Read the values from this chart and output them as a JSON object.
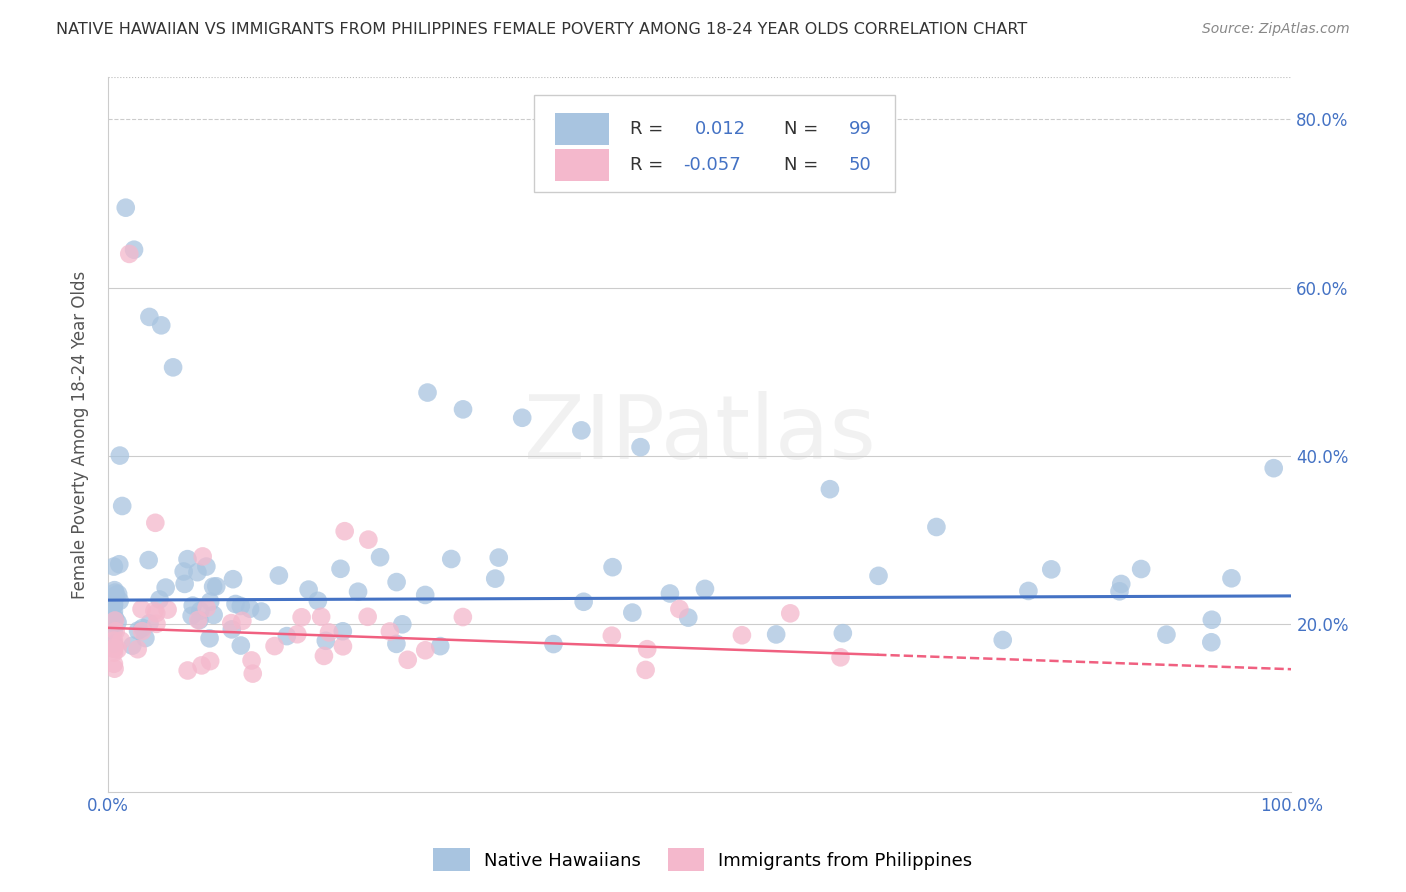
{
  "title": "NATIVE HAWAIIAN VS IMMIGRANTS FROM PHILIPPINES FEMALE POVERTY AMONG 18-24 YEAR OLDS CORRELATION CHART",
  "source": "Source: ZipAtlas.com",
  "ylabel": "Female Poverty Among 18-24 Year Olds",
  "xlim": [
    0,
    1.0
  ],
  "ylim": [
    0,
    0.85
  ],
  "y_ticks": [
    0.2,
    0.4,
    0.6,
    0.8
  ],
  "y_tick_labels": [
    "20.0%",
    "40.0%",
    "60.0%",
    "80.0%"
  ],
  "x_tick_labels_left": "0.0%",
  "x_tick_labels_right": "100.0%",
  "r1": "0.012",
  "n1": "99",
  "r2": "-0.057",
  "n2": "50",
  "color_blue": "#a8c4e0",
  "color_pink": "#f4b8cc",
  "color_blue_line": "#4472c4",
  "color_pink_line": "#f06080",
  "color_text_blue": "#4472c4",
  "color_title": "#333333",
  "color_source": "#888888",
  "background": "#ffffff",
  "watermark_text": "ZIPatlas",
  "legend_label_blue": "Native Hawaiians",
  "legend_label_pink": "Immigrants from Philippines",
  "blue_trend_y_start": 0.228,
  "blue_trend_y_end": 0.233,
  "pink_trend_y_start": 0.195,
  "pink_trend_y_end": 0.163,
  "pink_trend_x_end": 0.65,
  "seed": 77
}
